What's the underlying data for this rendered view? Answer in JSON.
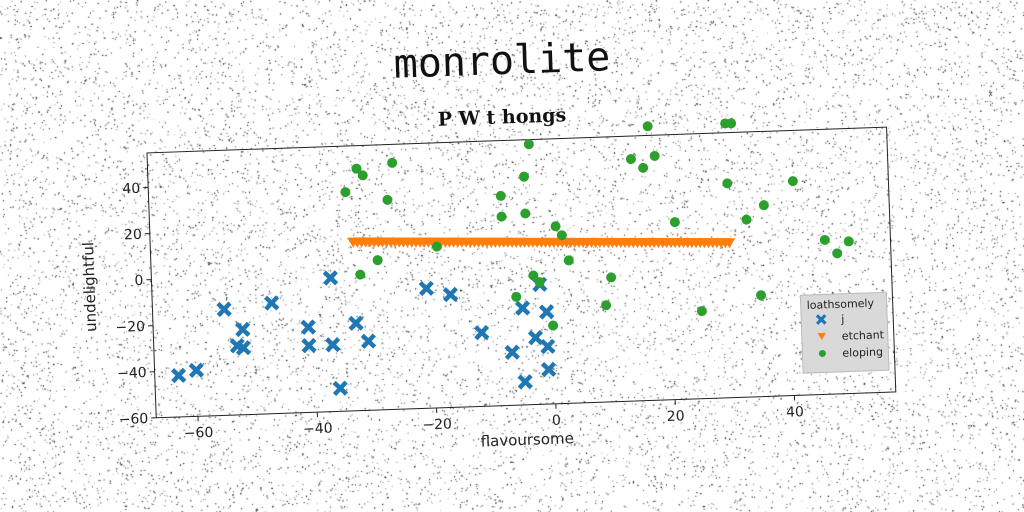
{
  "figure": {
    "title": "monrolite"
  },
  "chart_data": {
    "type": "scatter",
    "title": "P W t hongs",
    "xlabel": "flavoursome",
    "ylabel": "undelightful",
    "xlim": [
      -67,
      57
    ],
    "ylim": [
      -60,
      55
    ],
    "grid": false,
    "legend": {
      "title": "loathsomely",
      "placement": "lower-right"
    },
    "x_ticks": [
      -60,
      -40,
      -20,
      0,
      20,
      40
    ],
    "x_tick_labels": [
      "−60",
      "−40",
      "−20",
      "0",
      "20",
      "40"
    ],
    "y_ticks": [
      40,
      20,
      0,
      -20,
      -40,
      -60
    ],
    "y_tick_labels": [
      "40",
      "20",
      "0",
      "−20",
      "−40",
      "−60"
    ],
    "series": [
      {
        "name": "j",
        "marker": "x",
        "color": "#1f77b4",
        "points": [
          [
            -63,
            -42
          ],
          [
            -60,
            -40
          ],
          [
            -55,
            -14
          ],
          [
            -53,
            -30
          ],
          [
            -52,
            -23
          ],
          [
            -52,
            -31
          ],
          [
            -47,
            -12
          ],
          [
            -41,
            -23
          ],
          [
            -41,
            -31
          ],
          [
            -37,
            -2
          ],
          [
            -37,
            -31
          ],
          [
            -36,
            -50
          ],
          [
            -33,
            -22
          ],
          [
            -31,
            -30
          ],
          [
            -21,
            -8
          ],
          [
            -17,
            -11
          ],
          [
            -12,
            -28
          ],
          [
            -7,
            -37
          ],
          [
            -5,
            -18
          ],
          [
            -5,
            -50
          ],
          [
            -3,
            -31
          ],
          [
            -2,
            -8
          ],
          [
            -1,
            -35
          ],
          [
            -1,
            -20
          ],
          [
            -1,
            -45
          ]
        ]
      },
      {
        "name": "etchant",
        "marker": "v",
        "color": "#ff7f0e",
        "x_from": -33,
        "x_to": 30,
        "x_step": 0.7,
        "y_from": 13,
        "y_to": 7
      },
      {
        "name": "eloping",
        "marker": "o",
        "color": "#2ca02c",
        "points": [
          [
            -34,
            35
          ],
          [
            -32,
            45
          ],
          [
            -31,
            42
          ],
          [
            -29,
            5
          ],
          [
            -32,
            -1
          ],
          [
            -26,
            47
          ],
          [
            -27,
            31
          ],
          [
            -19,
            10
          ],
          [
            -8,
            31
          ],
          [
            -8,
            22
          ],
          [
            -6,
            -13
          ],
          [
            -4,
            23
          ],
          [
            -4,
            39
          ],
          [
            -3,
            53
          ],
          [
            -3,
            -4
          ],
          [
            -2,
            -7
          ],
          [
            0,
            -26
          ],
          [
            1,
            17
          ],
          [
            2,
            13
          ],
          [
            3,
            2
          ],
          [
            9,
            -18
          ],
          [
            10,
            -6
          ],
          [
            14,
            45
          ],
          [
            16,
            41
          ],
          [
            17,
            59
          ],
          [
            18,
            46
          ],
          [
            21,
            17
          ],
          [
            25,
            -22
          ],
          [
            30,
            59
          ],
          [
            31,
            59
          ],
          [
            30,
            33
          ],
          [
            33,
            17
          ],
          [
            35,
            -16
          ],
          [
            36,
            23
          ],
          [
            41,
            33
          ],
          [
            46,
            7
          ],
          [
            48,
            1
          ],
          [
            50,
            6
          ]
        ]
      }
    ]
  }
}
